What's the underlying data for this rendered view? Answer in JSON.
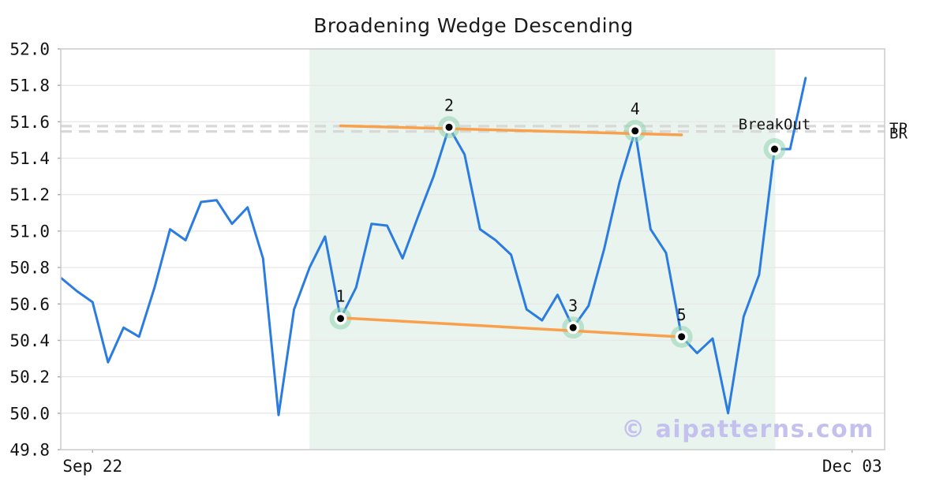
{
  "watermark": {
    "text": "© aipatterns.com"
  },
  "chart_data": {
    "type": "line",
    "title": "Broadening Wedge Descending",
    "xlabel": "",
    "ylabel": "",
    "ylim": [
      49.8,
      52.0
    ],
    "y_ticks": [
      49.8,
      50.0,
      50.2,
      50.4,
      50.6,
      50.8,
      51.0,
      51.2,
      51.4,
      51.6,
      51.8,
      52.0
    ],
    "xlim": [
      -0.05,
      53.1
    ],
    "x_ticks": [
      {
        "label": "Sep 22",
        "index": 2
      },
      {
        "label": "Dec 03",
        "index": 51
      }
    ],
    "grid": "horizontal-only",
    "values": [
      50.74,
      50.67,
      50.61,
      50.28,
      50.47,
      50.42,
      50.69,
      51.01,
      50.95,
      51.16,
      51.17,
      51.04,
      51.13,
      50.85,
      49.99,
      50.57,
      50.8,
      50.97,
      50.52,
      50.69,
      51.04,
      51.03,
      50.85,
      51.08,
      51.3,
      51.57,
      51.42,
      51.01,
      50.95,
      50.87,
      50.57,
      50.51,
      50.65,
      50.47,
      50.59,
      50.9,
      51.27,
      51.55,
      51.01,
      50.88,
      50.42,
      50.33,
      50.41,
      50.0,
      50.53,
      50.76,
      51.45,
      51.45,
      51.84
    ],
    "pattern_region": {
      "start_index": 16,
      "end_index": 46.05
    },
    "trendlines": [
      {
        "name": "resistance",
        "x1": 18,
        "y1": 51.578,
        "x2": 40,
        "y2": 51.528
      },
      {
        "name": "support",
        "x1": 18,
        "y1": 50.524,
        "x2": 40,
        "y2": 50.419
      }
    ],
    "h_lines": [
      {
        "label": "TP",
        "value": 51.576
      },
      {
        "label": "BR",
        "value": 51.547
      }
    ],
    "pivots": [
      {
        "label": "1",
        "index": 18,
        "value": 50.52
      },
      {
        "label": "2",
        "index": 25,
        "value": 51.57
      },
      {
        "label": "3",
        "index": 33,
        "value": 50.47
      },
      {
        "label": "4",
        "index": 37,
        "value": 51.55
      },
      {
        "label": "5",
        "index": 40,
        "value": 50.42
      },
      {
        "label": "BreakOut",
        "index": 46,
        "value": 51.45
      }
    ],
    "colors": {
      "line": "#2b7ce0",
      "trendline": "#f8a04b",
      "pattern_region": "#eaf4ef",
      "halo": "#8fd3ae",
      "ring": "#ffffff",
      "dot": "#000000",
      "dashed": "#d8d8d8",
      "grid": "#e7e7e7",
      "spine": "#cbcbcb",
      "tick": "#aaaaaa",
      "text": "#141414",
      "watermark": "#c4c1ee"
    }
  }
}
